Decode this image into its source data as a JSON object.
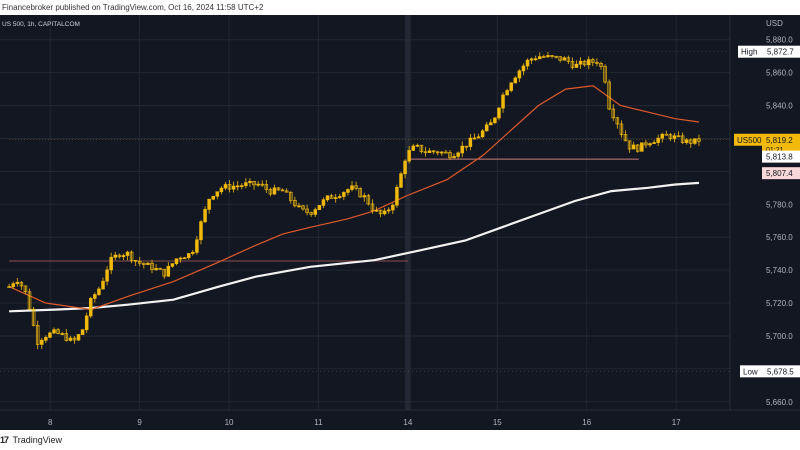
{
  "header": {
    "publish_text": "Financebroker published on TradingView.com, Oct 16, 2024 11:58 UTC+2"
  },
  "chart_data": {
    "type": "candlestick",
    "symbol_label": "US 500, 1h, CAPITALCOM",
    "currency_label": "USD",
    "colors": {
      "background": "#131722",
      "candle_body": "#f0b90b",
      "ma_fast": "#e05a2b",
      "ma_slow": "#f2f2f2",
      "grid": "#222733",
      "axis_text": "#b2b5be"
    },
    "y_axis": {
      "min": 5655,
      "max": 5895,
      "ticks": [
        "5,880.0",
        "5,860.0",
        "5,840.0",
        "5,820.0",
        "5,800.0",
        "5,780.0",
        "5,760.0",
        "5,740.0",
        "5,720.0",
        "5,700.0",
        "5,680.0",
        "5,660.0"
      ],
      "tick_values": [
        5880,
        5860,
        5840,
        5820,
        5800,
        5780,
        5760,
        5740,
        5720,
        5700,
        5680,
        5660
      ]
    },
    "x_axis": {
      "labels": [
        "8",
        "9",
        "10",
        "11",
        "14",
        "15",
        "16",
        "17"
      ],
      "label_positions": [
        0.45,
        1.43,
        2.41,
        3.39,
        4.37,
        5.35,
        6.33,
        7.31
      ]
    },
    "session_separator_x": 4.37,
    "price_labels": {
      "high": {
        "tag": "High",
        "value": "5,872.7"
      },
      "current": {
        "tag": "US500",
        "value": "5,819.2",
        "countdown": "01:21"
      },
      "level_a": {
        "value": "5,813.8"
      },
      "level_b": {
        "value": "5,807.4"
      },
      "low": {
        "tag": "Low",
        "value": "5,678.5"
      }
    },
    "levels": {
      "high": 5872.7,
      "current": 5819.2,
      "level_a": 5813.8,
      "level_b": 5807.4,
      "low": 5678.5,
      "support_line": 5745.5
    },
    "support_line_range": [
      0,
      4.37
    ],
    "level_b_range": [
      4.37,
      6.9
    ],
    "high_line_range": [
      5.0,
      6.3
    ],
    "current_line_range": [
      0,
      6.9
    ],
    "ohlc_keypoints": [
      [
        0.0,
        5730
      ],
      [
        0.08,
        5735
      ],
      [
        0.17,
        5728
      ],
      [
        0.25,
        5712
      ],
      [
        0.3,
        5696
      ],
      [
        0.38,
        5700
      ],
      [
        0.5,
        5702
      ],
      [
        0.6,
        5700
      ],
      [
        0.7,
        5696
      ],
      [
        0.8,
        5703
      ],
      [
        0.9,
        5722
      ],
      [
        1.0,
        5730
      ],
      [
        1.1,
        5745
      ],
      [
        1.2,
        5750
      ],
      [
        1.3,
        5750
      ],
      [
        1.4,
        5745
      ],
      [
        1.55,
        5742
      ],
      [
        1.7,
        5738
      ],
      [
        1.85,
        5748
      ],
      [
        2.0,
        5750
      ],
      [
        2.1,
        5768
      ],
      [
        2.2,
        5785
      ],
      [
        2.32,
        5790
      ],
      [
        2.45,
        5791
      ],
      [
        2.6,
        5792
      ],
      [
        2.75,
        5792
      ],
      [
        2.85,
        5788
      ],
      [
        3.0,
        5788
      ],
      [
        3.1,
        5782
      ],
      [
        3.2,
        5776
      ],
      [
        3.3,
        5775
      ],
      [
        3.4,
        5780
      ],
      [
        3.5,
        5784
      ],
      [
        3.6,
        5786
      ],
      [
        3.75,
        5790
      ],
      [
        3.9,
        5784
      ],
      [
        4.0,
        5776
      ],
      [
        4.1,
        5773
      ],
      [
        4.2,
        5780
      ],
      [
        4.28,
        5795
      ],
      [
        4.35,
        5810
      ],
      [
        4.45,
        5815
      ],
      [
        4.55,
        5812
      ],
      [
        4.7,
        5812
      ],
      [
        4.85,
        5810
      ],
      [
        5.0,
        5816
      ],
      [
        5.15,
        5822
      ],
      [
        5.3,
        5830
      ],
      [
        5.4,
        5845
      ],
      [
        5.5,
        5855
      ],
      [
        5.6,
        5862
      ],
      [
        5.7,
        5868
      ],
      [
        5.8,
        5870
      ],
      [
        5.95,
        5869
      ],
      [
        6.1,
        5868
      ],
      [
        6.2,
        5864
      ],
      [
        6.32,
        5866
      ],
      [
        6.45,
        5867
      ],
      [
        6.52,
        5860
      ],
      [
        6.58,
        5838
      ],
      [
        6.65,
        5832
      ],
      [
        6.72,
        5822
      ],
      [
        6.8,
        5815
      ],
      [
        6.9,
        5814
      ],
      [
        7.0,
        5818
      ],
      [
        7.12,
        5820
      ],
      [
        7.22,
        5822
      ],
      [
        7.32,
        5820
      ],
      [
        7.42,
        5818
      ],
      [
        7.52,
        5818
      ],
      [
        7.56,
        5819
      ]
    ],
    "ma_fast_keypoints": [
      [
        0.0,
        5730
      ],
      [
        0.4,
        5720
      ],
      [
        0.9,
        5716
      ],
      [
        1.3,
        5724
      ],
      [
        1.8,
        5733
      ],
      [
        2.3,
        5745
      ],
      [
        2.7,
        5755
      ],
      [
        3.0,
        5762
      ],
      [
        3.3,
        5766
      ],
      [
        3.7,
        5771
      ],
      [
        4.0,
        5776
      ],
      [
        4.35,
        5785
      ],
      [
        4.8,
        5795
      ],
      [
        5.2,
        5810
      ],
      [
        5.5,
        5825
      ],
      [
        5.8,
        5840
      ],
      [
        6.1,
        5850
      ],
      [
        6.4,
        5852
      ],
      [
        6.7,
        5840
      ],
      [
        7.0,
        5836
      ],
      [
        7.3,
        5832
      ],
      [
        7.56,
        5830
      ]
    ],
    "ma_slow_keypoints": [
      [
        0.0,
        5715
      ],
      [
        0.5,
        5716
      ],
      [
        0.9,
        5717
      ],
      [
        1.3,
        5719
      ],
      [
        1.8,
        5722
      ],
      [
        2.3,
        5730
      ],
      [
        2.7,
        5736
      ],
      [
        3.3,
        5742
      ],
      [
        4.0,
        5746
      ],
      [
        4.5,
        5752
      ],
      [
        5.0,
        5758
      ],
      [
        5.4,
        5766
      ],
      [
        5.8,
        5774
      ],
      [
        6.2,
        5782
      ],
      [
        6.6,
        5788
      ],
      [
        7.0,
        5790
      ],
      [
        7.3,
        5792
      ],
      [
        7.56,
        5793
      ]
    ]
  },
  "footer": {
    "logo_text": "17",
    "brand": "TradingView"
  }
}
